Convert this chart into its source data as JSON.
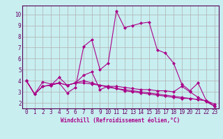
{
  "xlabel": "Windchill (Refroidissement éolien,°C)",
  "bg_color": "#c8eef0",
  "grid_color": "#b0b0b0",
  "line_color": "#aa0088",
  "tick_color": "#660066",
  "xlim": [
    -0.5,
    23.5
  ],
  "ylim": [
    1.5,
    10.8
  ],
  "xticks": [
    0,
    1,
    2,
    3,
    4,
    5,
    6,
    7,
    8,
    9,
    10,
    11,
    12,
    13,
    14,
    15,
    16,
    17,
    18,
    19,
    20,
    21,
    22,
    23
  ],
  "yticks": [
    2,
    3,
    4,
    5,
    6,
    7,
    8,
    9,
    10
  ],
  "lines": [
    {
      "x": [
        0,
        1,
        2,
        3,
        4,
        5,
        6,
        7,
        8,
        9,
        10,
        11,
        12,
        13,
        14,
        15,
        16,
        17,
        18,
        19,
        20,
        21,
        22,
        23
      ],
      "y": [
        4.0,
        2.8,
        3.9,
        3.7,
        3.8,
        2.9,
        3.4,
        7.1,
        7.7,
        5.0,
        5.6,
        10.3,
        8.8,
        9.0,
        9.2,
        9.3,
        6.8,
        6.5,
        5.6,
        3.7,
        3.1,
        3.8,
        2.2,
        1.7
      ]
    },
    {
      "x": [
        0,
        1,
        2,
        3,
        4,
        5,
        6,
        7,
        8,
        9,
        10,
        11,
        12,
        13,
        14,
        15,
        16,
        17,
        18,
        19,
        20,
        21,
        22,
        23
      ],
      "y": [
        4.0,
        2.8,
        3.5,
        3.6,
        3.8,
        3.6,
        3.8,
        4.5,
        4.8,
        3.2,
        3.5,
        3.3,
        3.1,
        3.0,
        2.9,
        2.8,
        2.7,
        2.6,
        2.5,
        2.4,
        2.4,
        2.3,
        2.2,
        1.9
      ]
    },
    {
      "x": [
        0,
        1,
        2,
        3,
        4,
        5,
        6,
        7,
        8,
        9,
        10,
        11,
        12,
        13,
        14,
        15,
        16,
        17,
        18,
        19,
        20,
        21,
        22,
        23
      ],
      "y": [
        4.0,
        2.8,
        3.5,
        3.6,
        4.3,
        3.6,
        3.8,
        3.8,
        3.7,
        3.6,
        3.5,
        3.5,
        3.4,
        3.3,
        3.2,
        3.2,
        3.1,
        3.1,
        3.0,
        3.5,
        3.0,
        2.5,
        2.1,
        1.7
      ]
    },
    {
      "x": [
        0,
        1,
        2,
        3,
        4,
        5,
        6,
        7,
        8,
        9,
        10,
        11,
        12,
        13,
        14,
        15,
        16,
        17,
        18,
        19,
        20,
        21,
        22,
        23
      ],
      "y": [
        4.0,
        2.8,
        3.5,
        3.6,
        3.8,
        3.6,
        3.8,
        4.0,
        3.8,
        3.6,
        3.4,
        3.3,
        3.2,
        3.1,
        3.0,
        2.9,
        2.8,
        2.7,
        2.6,
        2.5,
        2.4,
        2.3,
        2.2,
        1.7
      ]
    }
  ],
  "marker": "D",
  "markersize": 2.0,
  "linewidth": 0.8,
  "tick_fontsize": 5.5,
  "xlabel_fontsize": 5.5
}
